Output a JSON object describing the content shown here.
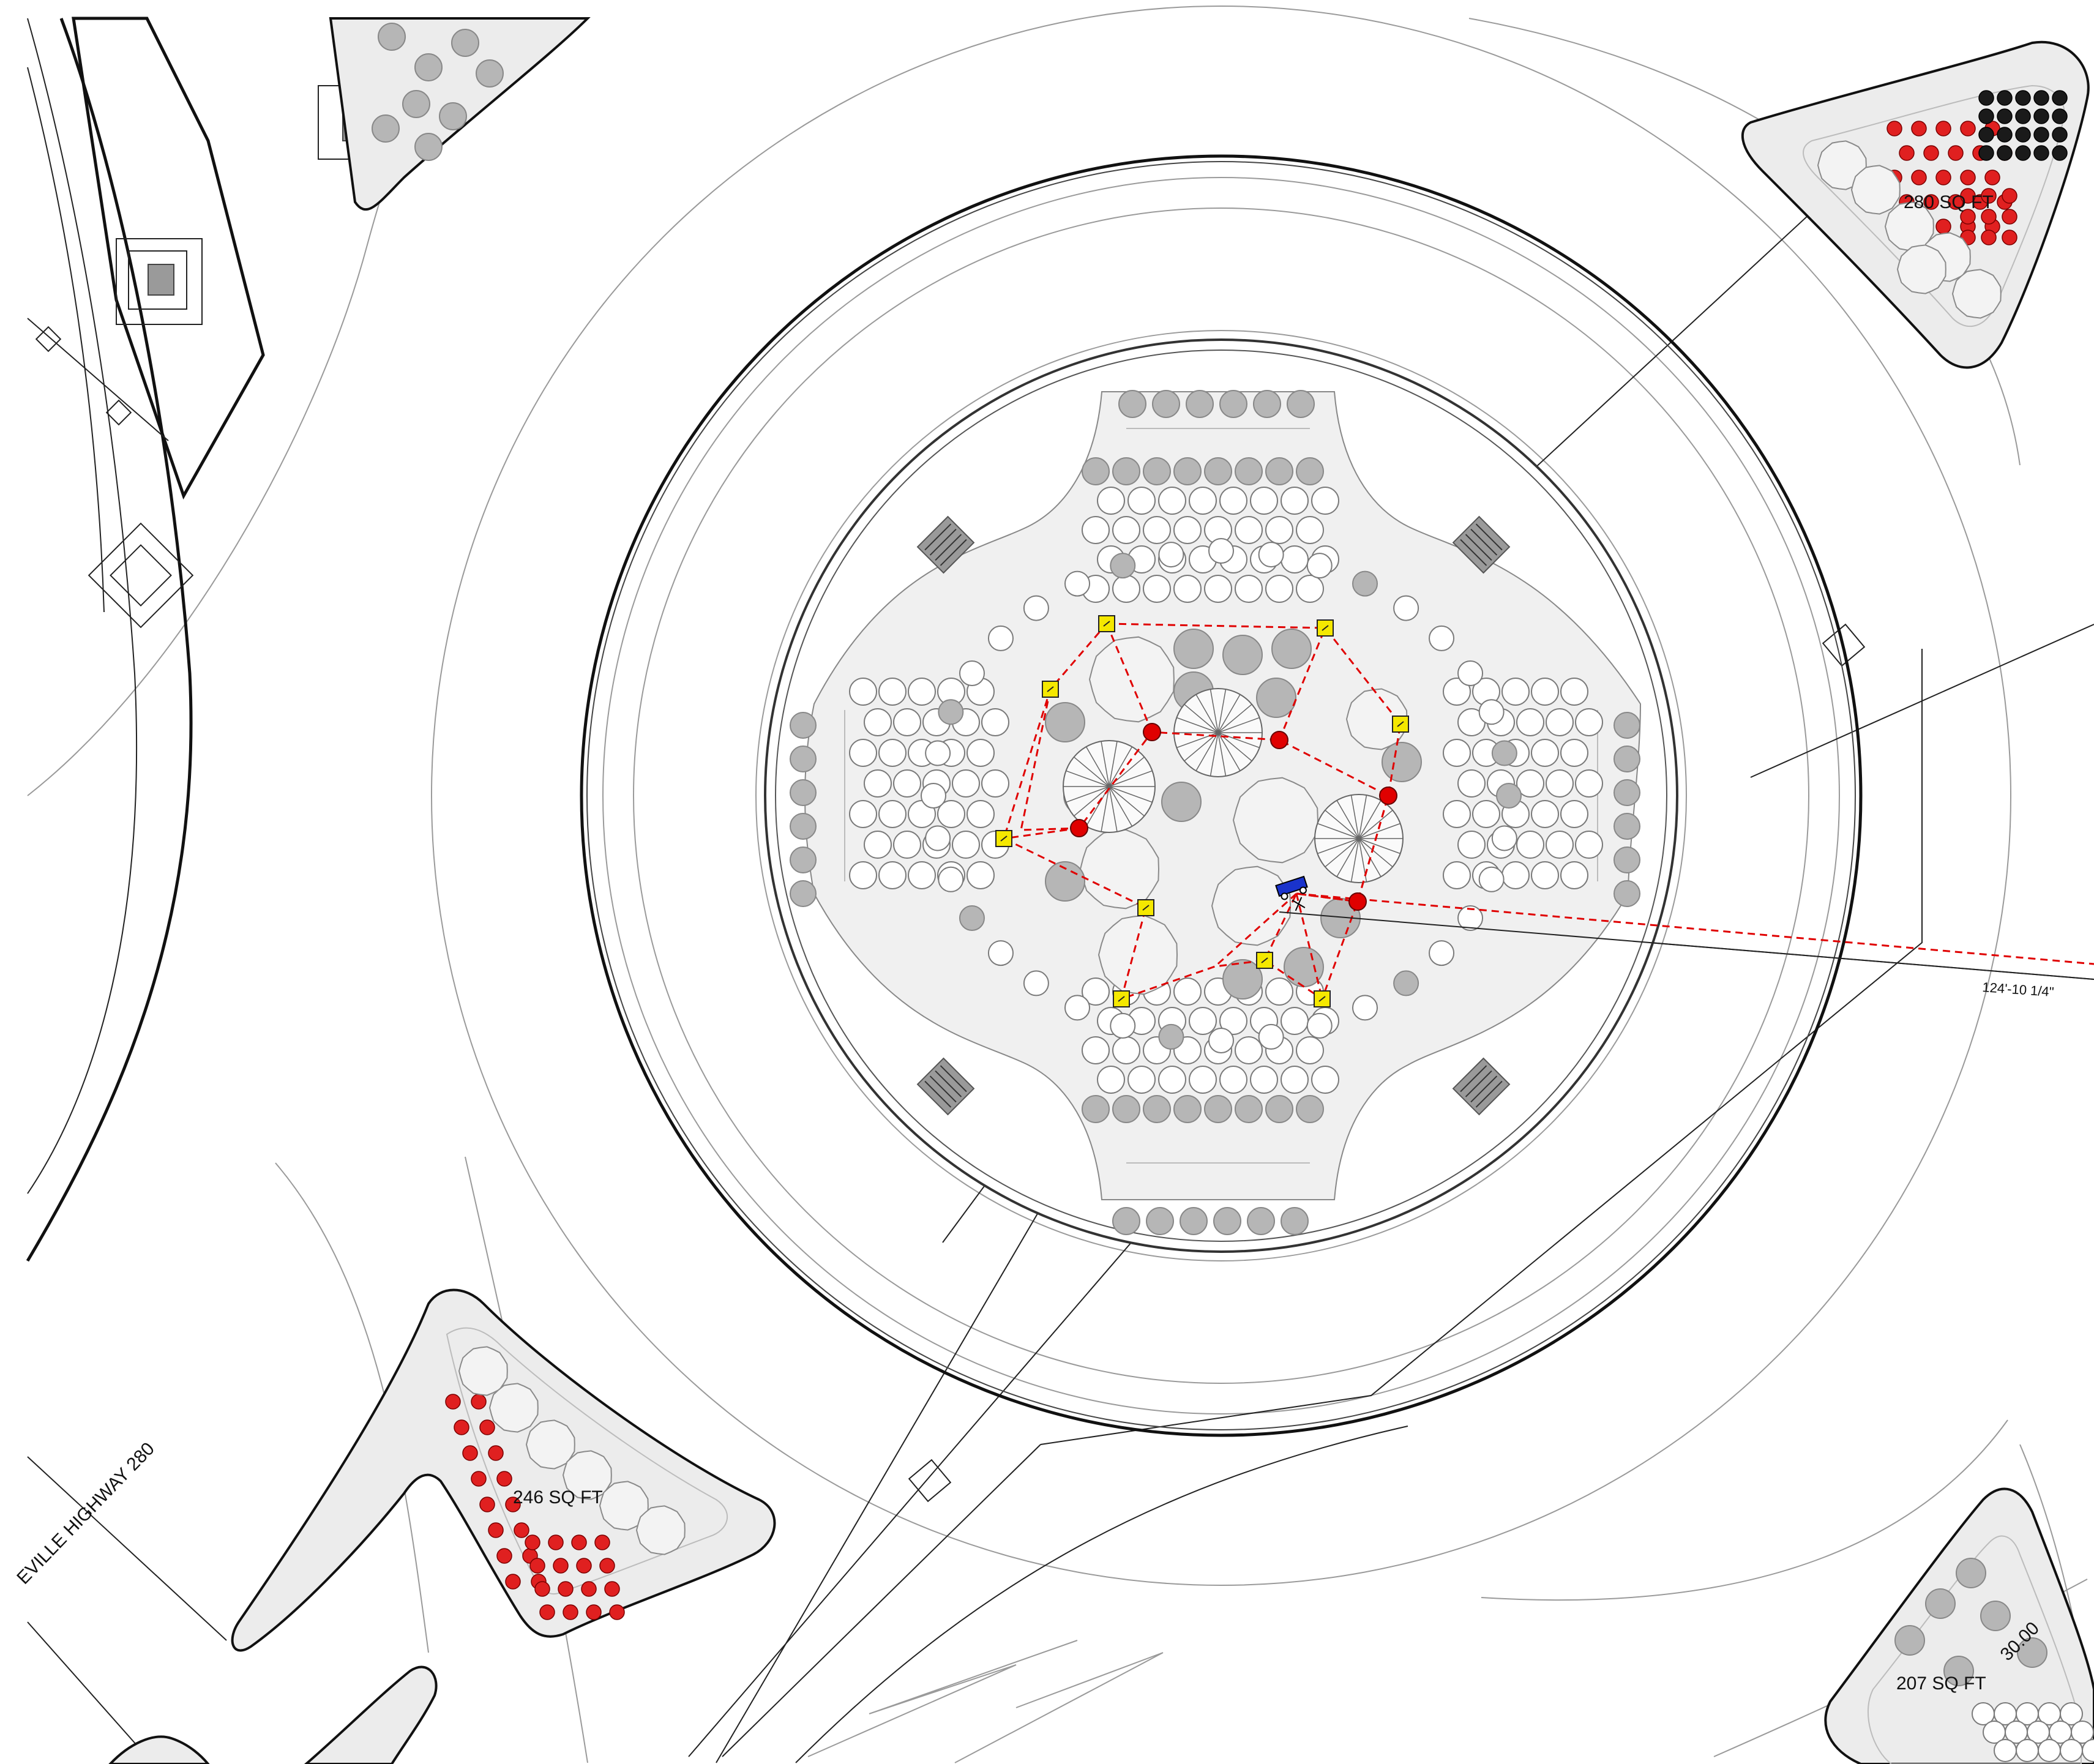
{
  "drawing": {
    "road_label": "EVILLE HIGHWAY 280",
    "dimension_label": "124'-10 1/4\"",
    "station_label": "30.00"
  },
  "islands": [
    {
      "id": "ne",
      "area_label": "280 SQ FT"
    },
    {
      "id": "sw",
      "area_label": "246 SQ FT"
    },
    {
      "id": "se",
      "area_label": "207 SQ FT"
    }
  ],
  "legend_colors": {
    "irrigation_run": "#e00000",
    "fixture": "#f5e800",
    "pole": "#e00000",
    "controller": "#1a33cc",
    "hardscape": "#ececec"
  },
  "symbols": {
    "fixture": "square-light-icon",
    "pole": "pole-marker-icon",
    "controller": "controller-icon",
    "drain": "drain-grate-icon"
  }
}
